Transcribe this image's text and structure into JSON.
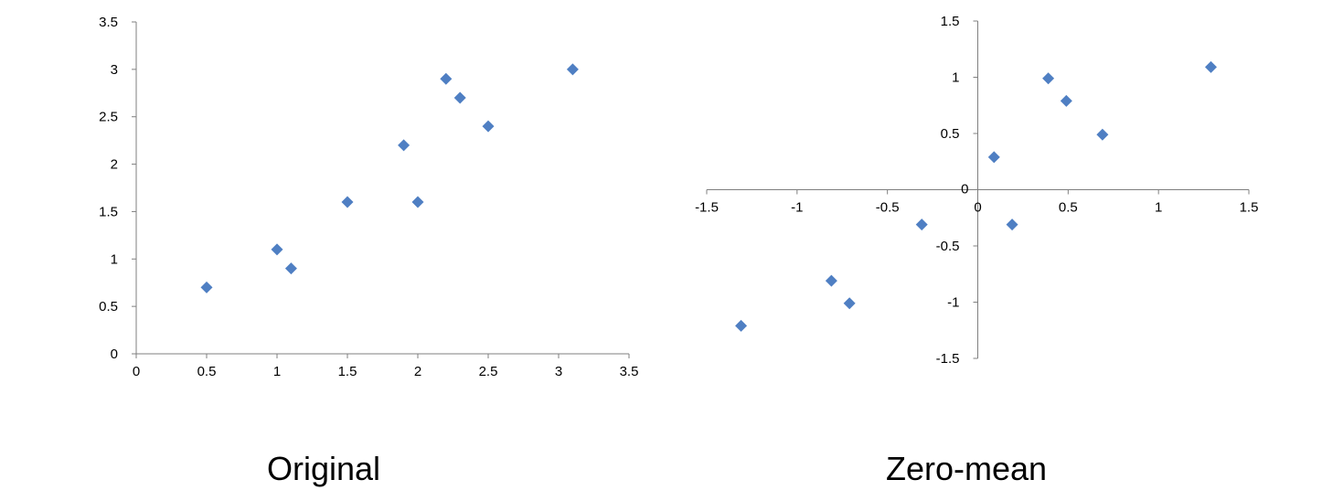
{
  "chart_data": [
    {
      "type": "scatter",
      "title": "",
      "caption": "Original",
      "xlabel": "",
      "ylabel": "",
      "xlim": [
        0,
        3.5
      ],
      "ylim": [
        0,
        3.5
      ],
      "x_ticks": [
        "0",
        "0.5",
        "1",
        "1.5",
        "2",
        "2.5",
        "3",
        "3.5"
      ],
      "y_ticks": [
        "0",
        "0.5",
        "1",
        "1.5",
        "2",
        "2.5",
        "3",
        "3.5"
      ],
      "grid": false,
      "marker": "diamond",
      "color": "#4F7FC3",
      "series": [
        {
          "x": [
            0.5,
            1.0,
            1.1,
            1.5,
            1.9,
            2.0,
            2.2,
            2.3,
            2.5,
            3.1
          ],
          "y": [
            0.7,
            1.1,
            0.9,
            1.6,
            2.2,
            1.6,
            2.9,
            2.7,
            2.4,
            3.0
          ]
        }
      ]
    },
    {
      "type": "scatter",
      "title": "",
      "caption": "Zero-mean",
      "xlabel": "",
      "ylabel": "",
      "xlim": [
        -1.5,
        1.5
      ],
      "ylim": [
        -1.5,
        1.5
      ],
      "x_ticks": [
        "-1.5",
        "-1",
        "-0.5",
        "0",
        "0.5",
        "1",
        "1.5"
      ],
      "y_ticks": [
        "-1.5",
        "-1",
        "-0.5",
        "0",
        "0.5",
        "1",
        "1.5"
      ],
      "grid": false,
      "axes_through_origin": true,
      "marker": "diamond",
      "color": "#4F7FC3",
      "series": [
        {
          "x": [
            -1.31,
            -0.81,
            -0.71,
            -0.31,
            0.09,
            0.19,
            0.39,
            0.49,
            0.69,
            1.29
          ],
          "y": [
            -1.21,
            -0.81,
            -1.01,
            -0.31,
            0.29,
            -0.31,
            0.99,
            0.79,
            0.49,
            1.09
          ]
        }
      ]
    }
  ]
}
